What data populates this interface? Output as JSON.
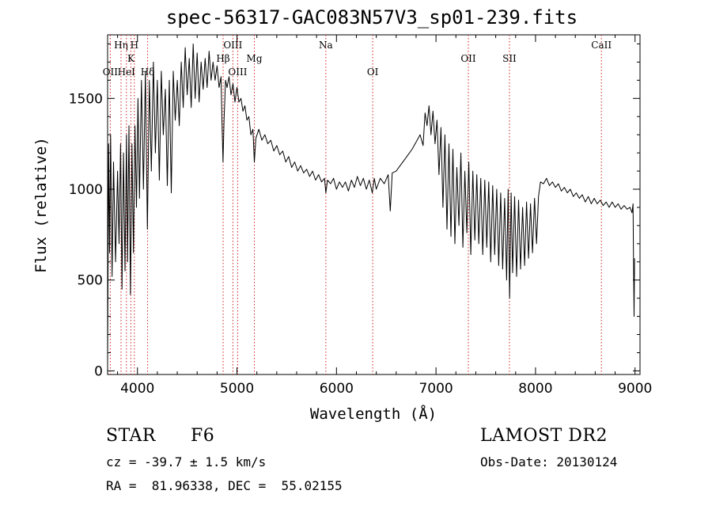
{
  "chart_data": {
    "type": "line",
    "title": "spec-56317-GAC083N57V3_sp01-239.fits",
    "xlabel": "Wavelength (Å)",
    "ylabel": "Flux (relative)",
    "xlim": [
      3700,
      9050
    ],
    "ylim": [
      -20,
      1850
    ],
    "xticks": [
      4000,
      5000,
      6000,
      7000,
      8000,
      9000
    ],
    "yticks": [
      0,
      500,
      1000,
      1500
    ],
    "grid": false,
    "line_color": "#000000",
    "marker_color": "#cc2222",
    "spectral_lines": [
      {
        "label": "OII",
        "x": 3727,
        "row": 3
      },
      {
        "label": "Hη",
        "x": 3835,
        "row": 1
      },
      {
        "label": "HeI",
        "x": 3889,
        "row": 3
      },
      {
        "label": "K",
        "x": 3934,
        "row": 2
      },
      {
        "label": "H",
        "x": 3969,
        "row": 1
      },
      {
        "label": "Hδ",
        "x": 4102,
        "row": 3
      },
      {
        "label": "Hβ",
        "x": 4861,
        "row": 2
      },
      {
        "label": "OIII",
        "x": 4959,
        "row": 1
      },
      {
        "label": "OIII",
        "x": 5007,
        "row": 3
      },
      {
        "label": "Mg",
        "x": 5175,
        "row": 2
      },
      {
        "label": "Na",
        "x": 5893,
        "row": 1
      },
      {
        "label": "OI",
        "x": 6364,
        "row": 3
      },
      {
        "label": "OII",
        "x": 7325,
        "row": 2
      },
      {
        "label": "SII",
        "x": 7738,
        "row": 2
      },
      {
        "label": "CaII",
        "x": 8662,
        "row": 1
      }
    ],
    "series": [
      {
        "points": [
          [
            3700,
            40
          ],
          [
            3710,
            1250
          ],
          [
            3720,
            650
          ],
          [
            3730,
            1300
          ],
          [
            3745,
            520
          ],
          [
            3760,
            1150
          ],
          [
            3780,
            600
          ],
          [
            3800,
            1100
          ],
          [
            3815,
            700
          ],
          [
            3830,
            1250
          ],
          [
            3845,
            450
          ],
          [
            3860,
            1200
          ],
          [
            3875,
            550
          ],
          [
            3890,
            1300
          ],
          [
            3900,
            600
          ],
          [
            3915,
            1350
          ],
          [
            3930,
            420
          ],
          [
            3945,
            1250
          ],
          [
            3960,
            650
          ],
          [
            3975,
            1350
          ],
          [
            3990,
            900
          ],
          [
            4005,
            1500
          ],
          [
            4020,
            950
          ],
          [
            4040,
            1600
          ],
          [
            4060,
            1000
          ],
          [
            4080,
            1650
          ],
          [
            4100,
            780
          ],
          [
            4120,
            1600
          ],
          [
            4140,
            1100
          ],
          [
            4160,
            1700
          ],
          [
            4180,
            1200
          ],
          [
            4200,
            1600
          ],
          [
            4220,
            1050
          ],
          [
            4240,
            1650
          ],
          [
            4260,
            1300
          ],
          [
            4280,
            1550
          ],
          [
            4300,
            1020
          ],
          [
            4320,
            1600
          ],
          [
            4340,
            980
          ],
          [
            4360,
            1650
          ],
          [
            4380,
            1380
          ],
          [
            4400,
            1600
          ],
          [
            4420,
            1350
          ],
          [
            4440,
            1700
          ],
          [
            4460,
            1450
          ],
          [
            4480,
            1780
          ],
          [
            4500,
            1520
          ],
          [
            4520,
            1720
          ],
          [
            4540,
            1450
          ],
          [
            4560,
            1800
          ],
          [
            4580,
            1500
          ],
          [
            4600,
            1750
          ],
          [
            4620,
            1480
          ],
          [
            4640,
            1700
          ],
          [
            4660,
            1550
          ],
          [
            4680,
            1720
          ],
          [
            4700,
            1560
          ],
          [
            4720,
            1760
          ],
          [
            4740,
            1600
          ],
          [
            4760,
            1700
          ],
          [
            4780,
            1600
          ],
          [
            4800,
            1680
          ],
          [
            4820,
            1560
          ],
          [
            4840,
            1620
          ],
          [
            4850,
            1350
          ],
          [
            4860,
            1150
          ],
          [
            4870,
            1380
          ],
          [
            4885,
            1600
          ],
          [
            4900,
            1560
          ],
          [
            4920,
            1620
          ],
          [
            4940,
            1520
          ],
          [
            4960,
            1580
          ],
          [
            4980,
            1480
          ],
          [
            5000,
            1560
          ],
          [
            5020,
            1480
          ],
          [
            5040,
            1500
          ],
          [
            5060,
            1430
          ],
          [
            5080,
            1460
          ],
          [
            5100,
            1380
          ],
          [
            5120,
            1400
          ],
          [
            5140,
            1300
          ],
          [
            5160,
            1330
          ],
          [
            5175,
            1150
          ],
          [
            5190,
            1280
          ],
          [
            5220,
            1330
          ],
          [
            5250,
            1270
          ],
          [
            5280,
            1300
          ],
          [
            5310,
            1250
          ],
          [
            5340,
            1270
          ],
          [
            5370,
            1210
          ],
          [
            5400,
            1240
          ],
          [
            5430,
            1190
          ],
          [
            5460,
            1210
          ],
          [
            5490,
            1150
          ],
          [
            5520,
            1180
          ],
          [
            5550,
            1120
          ],
          [
            5580,
            1150
          ],
          [
            5610,
            1100
          ],
          [
            5640,
            1130
          ],
          [
            5670,
            1090
          ],
          [
            5700,
            1110
          ],
          [
            5730,
            1070
          ],
          [
            5760,
            1100
          ],
          [
            5790,
            1050
          ],
          [
            5820,
            1080
          ],
          [
            5850,
            1040
          ],
          [
            5880,
            1060
          ],
          [
            5893,
            980
          ],
          [
            5910,
            1050
          ],
          [
            5940,
            1030
          ],
          [
            5970,
            1060
          ],
          [
            6000,
            1000
          ],
          [
            6030,
            1040
          ],
          [
            6060,
            1010
          ],
          [
            6090,
            1040
          ],
          [
            6120,
            990
          ],
          [
            6150,
            1050
          ],
          [
            6180,
            1010
          ],
          [
            6210,
            1070
          ],
          [
            6240,
            1020
          ],
          [
            6270,
            1060
          ],
          [
            6300,
            1000
          ],
          [
            6330,
            1050
          ],
          [
            6360,
            980
          ],
          [
            6380,
            1060
          ],
          [
            6400,
            1000
          ],
          [
            6440,
            1060
          ],
          [
            6480,
            1030
          ],
          [
            6520,
            1080
          ],
          [
            6540,
            880
          ],
          [
            6560,
            1090
          ],
          [
            6600,
            1100
          ],
          [
            6640,
            1130
          ],
          [
            6680,
            1160
          ],
          [
            6720,
            1190
          ],
          [
            6760,
            1220
          ],
          [
            6800,
            1260
          ],
          [
            6840,
            1300
          ],
          [
            6870,
            1240
          ],
          [
            6890,
            1420
          ],
          [
            6910,
            1350
          ],
          [
            6930,
            1460
          ],
          [
            6950,
            1300
          ],
          [
            6970,
            1430
          ],
          [
            6990,
            1250
          ],
          [
            7010,
            1380
          ],
          [
            7030,
            1080
          ],
          [
            7050,
            1340
          ],
          [
            7070,
            900
          ],
          [
            7090,
            1300
          ],
          [
            7110,
            780
          ],
          [
            7130,
            1250
          ],
          [
            7150,
            740
          ],
          [
            7170,
            1220
          ],
          [
            7190,
            700
          ],
          [
            7210,
            1120
          ],
          [
            7230,
            800
          ],
          [
            7250,
            1200
          ],
          [
            7270,
            680
          ],
          [
            7290,
            1100
          ],
          [
            7310,
            760
          ],
          [
            7330,
            1150
          ],
          [
            7350,
            640
          ],
          [
            7370,
            1100
          ],
          [
            7390,
            720
          ],
          [
            7410,
            1080
          ],
          [
            7430,
            700
          ],
          [
            7450,
            1060
          ],
          [
            7470,
            640
          ],
          [
            7490,
            1050
          ],
          [
            7510,
            680
          ],
          [
            7530,
            1040
          ],
          [
            7550,
            600
          ],
          [
            7570,
            1020
          ],
          [
            7590,
            640
          ],
          [
            7610,
            1000
          ],
          [
            7630,
            580
          ],
          [
            7650,
            980
          ],
          [
            7670,
            560
          ],
          [
            7690,
            950
          ],
          [
            7710,
            500
          ],
          [
            7725,
            1000
          ],
          [
            7740,
            400
          ],
          [
            7755,
            980
          ],
          [
            7770,
            540
          ],
          [
            7790,
            960
          ],
          [
            7810,
            520
          ],
          [
            7830,
            940
          ],
          [
            7850,
            560
          ],
          [
            7870,
            900
          ],
          [
            7890,
            580
          ],
          [
            7910,
            930
          ],
          [
            7930,
            620
          ],
          [
            7950,
            920
          ],
          [
            7970,
            650
          ],
          [
            7990,
            950
          ],
          [
            8010,
            700
          ],
          [
            8030,
            960
          ],
          [
            8050,
            1040
          ],
          [
            8080,
            1030
          ],
          [
            8110,
            1060
          ],
          [
            8140,
            1020
          ],
          [
            8170,
            1040
          ],
          [
            8200,
            1010
          ],
          [
            8230,
            1030
          ],
          [
            8260,
            990
          ],
          [
            8290,
            1010
          ],
          [
            8320,
            980
          ],
          [
            8350,
            1000
          ],
          [
            8380,
            960
          ],
          [
            8410,
            980
          ],
          [
            8440,
            950
          ],
          [
            8470,
            970
          ],
          [
            8500,
            930
          ],
          [
            8530,
            960
          ],
          [
            8560,
            920
          ],
          [
            8590,
            950
          ],
          [
            8620,
            920
          ],
          [
            8650,
            940
          ],
          [
            8680,
            910
          ],
          [
            8710,
            930
          ],
          [
            8740,
            900
          ],
          [
            8770,
            930
          ],
          [
            8800,
            900
          ],
          [
            8830,
            920
          ],
          [
            8860,
            890
          ],
          [
            8890,
            910
          ],
          [
            8920,
            890
          ],
          [
            8950,
            900
          ],
          [
            8970,
            870
          ],
          [
            8980,
            920
          ],
          [
            8985,
            600
          ],
          [
            8990,
            300
          ],
          [
            8995,
            620
          ]
        ]
      }
    ]
  },
  "info": {
    "object_type": "STAR",
    "spectral_class": "F6",
    "survey": "LAMOST DR2",
    "redshift": "cz = -39.7 ± 1.5 km/s",
    "obs_date": "Obs-Date: 20130124",
    "coordinates": "RA =  81.96338, DEC =  55.02155"
  }
}
